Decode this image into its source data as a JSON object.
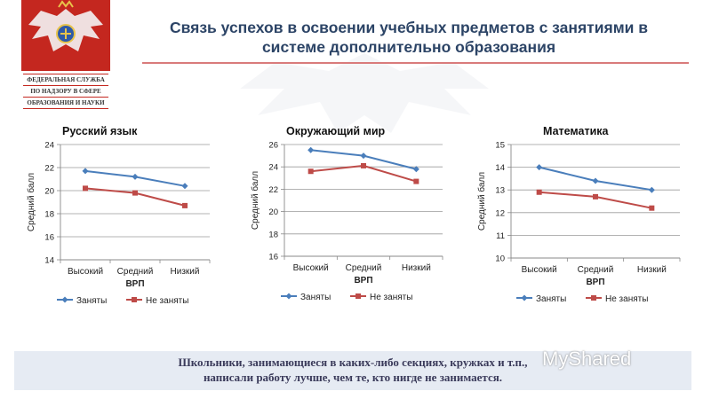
{
  "header": {
    "title_line1": "Связь успехов в освоении учебных предметов с занятиями в",
    "title_line2": "системе дополнительно образования"
  },
  "logo": {
    "line1": "ФЕДЕРАЛЬНАЯ СЛУЖБА",
    "line2": "ПО НАДЗОРУ В СФЕРЕ",
    "line3": "ОБРАЗОВАНИЯ И НАУКИ",
    "icon": "double-headed-eagle-icon",
    "color": "#c4271f"
  },
  "footer": {
    "line1": "Школьники, занимающиеся в каких-либо секциях, кружках и т.п.,",
    "line2": "написали работу лучше, чем те, кто нигде не занимается."
  },
  "watermark": {
    "text": "MyShared"
  },
  "chart_data": [
    {
      "type": "line",
      "title": "Русский язык",
      "xlabel": "ВРП",
      "ylabel": "Средний балл",
      "categories": [
        "Высокий",
        "Средний",
        "Низкий"
      ],
      "ylim": [
        14,
        24
      ],
      "ytick_step": 2,
      "grid": true,
      "legend": "bottom",
      "series": [
        {
          "name": "Заняты",
          "values": [
            21.7,
            21.2,
            20.4
          ],
          "color": "#4a7ebb"
        },
        {
          "name": "Не заняты",
          "values": [
            20.2,
            19.8,
            18.7
          ],
          "color": "#be4b48"
        }
      ]
    },
    {
      "type": "line",
      "title": "Окружающий мир",
      "xlabel": "ВРП",
      "ylabel": "Средний балл",
      "categories": [
        "Высокий",
        "Средний",
        "Низкий"
      ],
      "ylim": [
        16,
        26
      ],
      "ytick_step": 2,
      "grid": true,
      "legend": "bottom",
      "series": [
        {
          "name": "Заняты",
          "values": [
            25.5,
            25.0,
            23.8
          ],
          "color": "#4a7ebb"
        },
        {
          "name": "Не заняты",
          "values": [
            23.6,
            24.1,
            22.7
          ],
          "color": "#be4b48"
        }
      ]
    },
    {
      "type": "line",
      "title": "Математика",
      "xlabel": "ВРП",
      "ylabel": "Средний балл",
      "categories": [
        "Высокий",
        "Средний",
        "Низкий"
      ],
      "ylim": [
        10,
        15
      ],
      "ytick_step": 1,
      "grid": true,
      "legend": "bottom",
      "series": [
        {
          "name": "Заняты",
          "values": [
            14.0,
            13.4,
            13.0
          ],
          "color": "#4a7ebb"
        },
        {
          "name": "Не заняты",
          "values": [
            12.9,
            12.7,
            12.2
          ],
          "color": "#be4b48"
        }
      ]
    }
  ]
}
